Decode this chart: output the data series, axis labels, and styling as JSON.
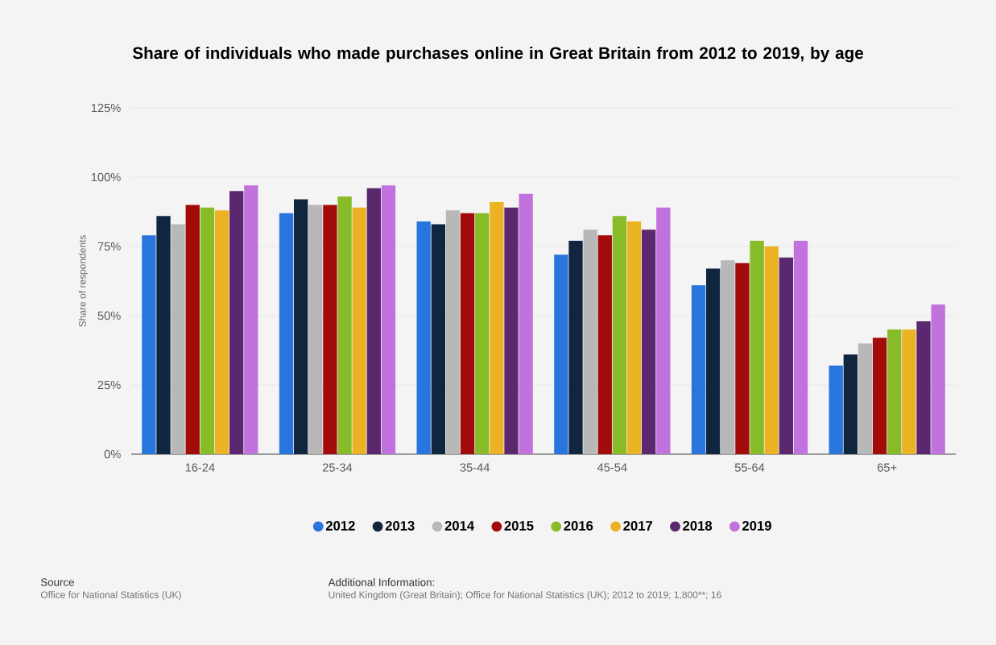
{
  "chart_data": {
    "type": "bar",
    "title": "Share of individuals who made purchases online in Great Britain from 2012 to 2019, by age",
    "ylabel": "Share of respondents",
    "categories": [
      "16-24",
      "25-34",
      "35-44",
      "45-54",
      "55-64",
      "65+"
    ],
    "series": [
      {
        "name": "2012",
        "color": "#2876dd",
        "values": [
          79,
          87,
          84,
          72,
          61,
          32
        ]
      },
      {
        "name": "2013",
        "color": "#10263e",
        "values": [
          86,
          92,
          83,
          77,
          67,
          36
        ]
      },
      {
        "name": "2014",
        "color": "#b8b8b8",
        "values": [
          83,
          90,
          88,
          81,
          70,
          40
        ]
      },
      {
        "name": "2015",
        "color": "#a30b0b",
        "values": [
          90,
          90,
          87,
          79,
          69,
          42
        ]
      },
      {
        "name": "2016",
        "color": "#87bb27",
        "values": [
          89,
          93,
          87,
          86,
          77,
          45
        ]
      },
      {
        "name": "2017",
        "color": "#ebb324",
        "values": [
          88,
          89,
          91,
          84,
          75,
          45
        ]
      },
      {
        "name": "2018",
        "color": "#5b2870",
        "values": [
          95,
          96,
          89,
          81,
          71,
          48
        ]
      },
      {
        "name": "2019",
        "color": "#c272dc",
        "values": [
          97,
          97,
          94,
          89,
          77,
          54
        ]
      }
    ],
    "ylim": [
      0,
      125
    ],
    "yticks": [
      {
        "value": 0,
        "label": "0%"
      },
      {
        "value": 25,
        "label": "25%"
      },
      {
        "value": 50,
        "label": "50%"
      },
      {
        "value": 75,
        "label": "75%"
      },
      {
        "value": 100,
        "label": "100%"
      },
      {
        "value": 125,
        "label": "125%"
      }
    ],
    "grid": "y",
    "legend": "bottom",
    "annotations": [
      "Source",
      "Office for National Statistics (UK)",
      "Additional Information:",
      "United Kingdom (Great Britain); Office for National Statistics (UK); 2012 to 2019; 1,800**; 16"
    ]
  }
}
